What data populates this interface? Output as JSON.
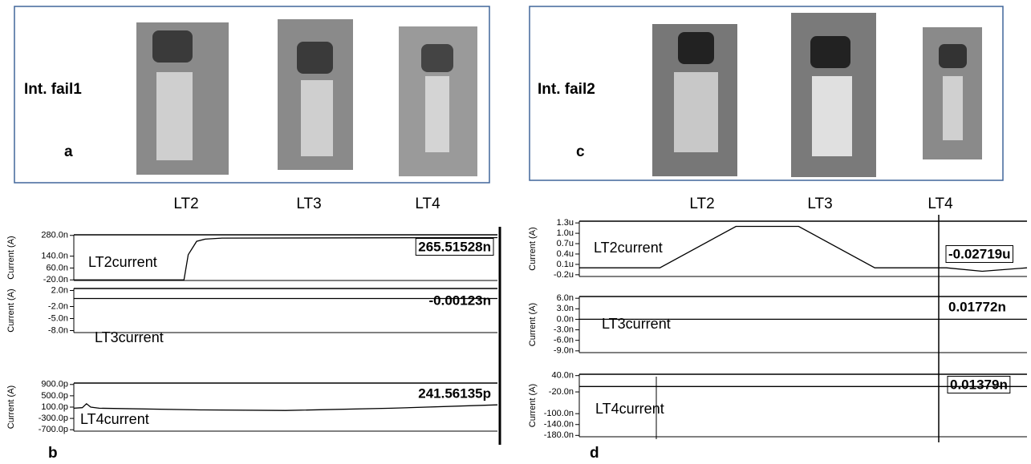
{
  "figure": {
    "panel_a": {
      "title": "Int. fail1",
      "letter": "a",
      "columns": [
        "LT2",
        "LT3",
        "LT4"
      ]
    },
    "panel_c": {
      "title": "Int. fail2",
      "letter": "c",
      "columns": [
        "LT2",
        "LT3",
        "LT4"
      ]
    },
    "panel_b_letter": "b",
    "panel_d_letter": "d"
  },
  "chart_data": [
    {
      "type": "line",
      "ylabel": "Current (A)",
      "xlim": [
        0,
        100
      ],
      "ylim": [
        -24,
        284
      ],
      "yticks": [
        {
          "value": 280,
          "label": "280.0n"
        },
        {
          "value": 140,
          "label": "140.0n"
        },
        {
          "value": 60,
          "label": "60.0n"
        },
        {
          "value": -20,
          "label": "-20.0n"
        }
      ],
      "annotation": "265.51528n",
      "x": [
        0,
        26,
        27,
        29,
        31,
        35,
        100
      ],
      "series": [
        {
          "name": "LT2current",
          "color": "#000000",
          "values": [
            -20,
            -20,
            150,
            240,
            255,
            262,
            265
          ]
        }
      ]
    },
    {
      "type": "line",
      "ylabel": "Current (A)",
      "xlim": [
        0,
        100
      ],
      "ylim": [
        -8.5,
        2.5
      ],
      "yticks": [
        {
          "value": 2,
          "label": "2.0n"
        },
        {
          "value": -2,
          "label": "-2.0n"
        },
        {
          "value": -5,
          "label": "-5.0n"
        },
        {
          "value": -8,
          "label": "-8.0n"
        }
      ],
      "annotation": "-0.00123n",
      "x": [
        0,
        100
      ],
      "series": [
        {
          "name": "LT3current",
          "color": "#000000",
          "values": [
            0,
            0
          ]
        }
      ]
    },
    {
      "type": "line",
      "ylabel": "Current (A)",
      "xlim": [
        0,
        100
      ],
      "ylim": [
        -750,
        950
      ],
      "yticks": [
        {
          "value": 900,
          "label": "900.0p"
        },
        {
          "value": 500,
          "label": "500.0p"
        },
        {
          "value": 100,
          "label": "100.0p"
        },
        {
          "value": -300,
          "label": "-300.0p"
        },
        {
          "value": -700,
          "label": "-700.0p"
        }
      ],
      "annotation": "241.56135p",
      "x": [
        0,
        2,
        3,
        4,
        6,
        30,
        50,
        75,
        100
      ],
      "series": [
        {
          "name": "LT4current",
          "color": "#000000",
          "values": [
            60,
            80,
            220,
            100,
            60,
            0,
            -20,
            60,
            180
          ]
        }
      ]
    },
    {
      "type": "line",
      "ylabel": "Current (A)",
      "xlim": [
        0,
        100
      ],
      "ylim": [
        -0.25,
        1.35
      ],
      "yticks": [
        {
          "value": 1.3,
          "label": "1.3u"
        },
        {
          "value": 1,
          "label": "1.0u"
        },
        {
          "value": 0.7,
          "label": "0.7u"
        },
        {
          "value": 0.4,
          "label": "0.4u"
        },
        {
          "value": 0.1,
          "label": "0.1u"
        },
        {
          "value": -0.2,
          "label": "-0.2u"
        }
      ],
      "annotation": "-0.02719u",
      "x": [
        0,
        18,
        35,
        49,
        66,
        82,
        90,
        100
      ],
      "series": [
        {
          "name": "LT2current",
          "color": "#000000",
          "values": [
            0,
            0,
            1.2,
            1.2,
            0,
            0,
            -0.1,
            0
          ]
        }
      ]
    },
    {
      "type": "line",
      "ylabel": "Current (A)",
      "xlim": [
        0,
        100
      ],
      "ylim": [
        -9.5,
        6.5
      ],
      "yticks": [
        {
          "value": 6,
          "label": "6.0n"
        },
        {
          "value": 3,
          "label": "3.0n"
        },
        {
          "value": 0,
          "label": "0.0n"
        },
        {
          "value": -3,
          "label": "-3.0n"
        },
        {
          "value": -6,
          "label": "-6.0n"
        },
        {
          "value": -9,
          "label": "-9.0n"
        }
      ],
      "annotation": "0.01772n",
      "x": [
        0,
        100
      ],
      "series": [
        {
          "name": "LT3current",
          "color": "#000000",
          "values": [
            0,
            0
          ]
        }
      ]
    },
    {
      "type": "line",
      "ylabel": "Current (A)",
      "xlim": [
        0,
        100
      ],
      "ylim": [
        -185,
        45
      ],
      "yticks": [
        {
          "value": 40,
          "label": "40.0n"
        },
        {
          "value": -20,
          "label": "-20.0n"
        },
        {
          "value": -100,
          "label": "-100.0n"
        },
        {
          "value": -140,
          "label": "-140.0n"
        },
        {
          "value": -180,
          "label": "-180.0n"
        }
      ],
      "annotation": "0.01379n",
      "x": [
        0,
        100
      ],
      "series": [
        {
          "name": "LT4current",
          "color": "#000000",
          "values": [
            0,
            0
          ]
        }
      ]
    }
  ]
}
